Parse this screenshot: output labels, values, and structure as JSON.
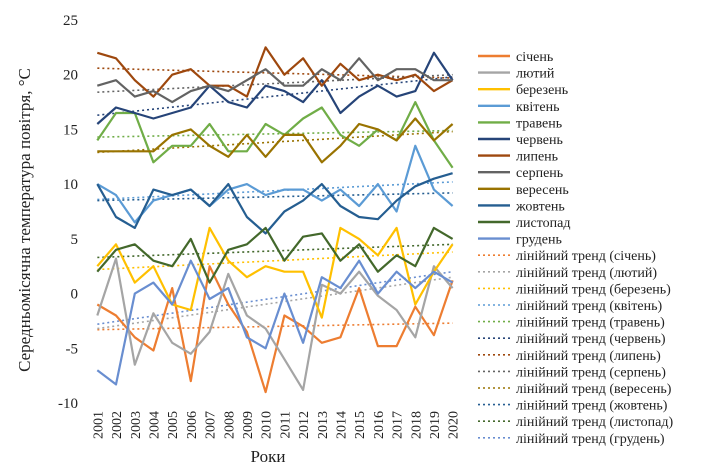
{
  "chart_data": {
    "type": "line",
    "ylabel": "Середньомісячна температура повітря, °С",
    "xlabel": "Роки",
    "ylim": [
      -10,
      25
    ],
    "yticks": [
      -10,
      -5,
      0,
      5,
      10,
      15,
      20,
      25
    ],
    "x": [
      "2001",
      "2002",
      "2003",
      "2004",
      "2005",
      "2006",
      "2007",
      "2008",
      "2009",
      "2010",
      "2011",
      "2012",
      "2013",
      "2014",
      "2015",
      "2016",
      "2017",
      "2018",
      "2019",
      "2020"
    ],
    "grid": false,
    "legend_position": "right",
    "series": [
      {
        "name": "січень",
        "color": "#ED7D31",
        "values": [
          -1,
          -2,
          -4,
          -5.2,
          0.5,
          -8,
          2.5,
          -1,
          -3.5,
          -9,
          -2,
          -3,
          -4.5,
          -4,
          0.5,
          -4.8,
          -4.8,
          -1.2,
          -3.8,
          1.2
        ]
      },
      {
        "name": "лютий",
        "color": "#A5A5A5",
        "values": [
          -2,
          3.2,
          -6.5,
          -1.8,
          -4.5,
          -5.5,
          -3.5,
          1.8,
          -2,
          -3.2,
          -6,
          -8.8,
          0.8,
          0,
          2,
          -0.2,
          -1.5,
          -4,
          2.5,
          0.5
        ]
      },
      {
        "name": "березень",
        "color": "#FFC000",
        "values": [
          2.5,
          4.5,
          1,
          2.5,
          -1,
          -1.5,
          6,
          3,
          1.5,
          2.5,
          2,
          2,
          -2.2,
          6,
          5,
          3.5,
          6,
          -1,
          2,
          4.5
        ]
      },
      {
        "name": "квітень",
        "color": "#5B9BD5",
        "values": [
          10,
          9,
          6.5,
          8.5,
          9,
          9.5,
          8,
          9.5,
          10,
          9,
          9.5,
          9.5,
          8.5,
          9.5,
          8,
          10,
          7.5,
          13.5,
          9.5,
          8
        ]
      },
      {
        "name": "травень",
        "color": "#70AD47",
        "values": [
          14,
          16.5,
          16.5,
          12,
          13.5,
          13.5,
          15.5,
          13,
          13,
          15.5,
          14.5,
          16,
          17,
          14.5,
          13.5,
          15,
          14,
          17.5,
          14,
          11.5
        ]
      },
      {
        "name": "червень",
        "color": "#264478",
        "values": [
          15.5,
          17,
          16.5,
          16,
          16.5,
          17,
          19,
          17.5,
          17,
          19,
          18.5,
          17.5,
          19.5,
          16.5,
          18,
          19,
          18,
          18.5,
          22,
          19.5
        ]
      },
      {
        "name": "липень",
        "color": "#9E480E",
        "values": [
          22,
          21.5,
          19.5,
          18,
          20,
          20.5,
          19,
          19,
          18,
          22.5,
          20,
          21.5,
          19,
          21,
          19.5,
          20,
          19.5,
          20,
          18.5,
          19.5
        ]
      },
      {
        "name": "серпень",
        "color": "#636363",
        "values": [
          19,
          19.5,
          18,
          18.5,
          17.5,
          18.5,
          19,
          18.5,
          19.5,
          20.5,
          19,
          19,
          20.5,
          19.5,
          21.5,
          19.5,
          20.5,
          20.5,
          19.5,
          19.5
        ]
      },
      {
        "name": "вересень",
        "color": "#997300",
        "values": [
          13,
          13,
          13,
          13,
          14.5,
          15,
          13.5,
          12.5,
          14.5,
          12.5,
          14.5,
          14.5,
          12,
          13.5,
          15.5,
          15,
          14,
          16,
          14,
          15.5
        ]
      },
      {
        "name": "жовтень",
        "color": "#255E91",
        "values": [
          10,
          7,
          6,
          9.5,
          9,
          9.5,
          8,
          10,
          7,
          5.5,
          7.5,
          8.5,
          10,
          8,
          7,
          6.8,
          8.5,
          9.8,
          10.5,
          11
        ]
      },
      {
        "name": "листопад",
        "color": "#43682B",
        "values": [
          2,
          4,
          4.5,
          3,
          2.5,
          5,
          1,
          4,
          4.5,
          6,
          3,
          5.2,
          5.5,
          3,
          4.5,
          2,
          3.5,
          2.5,
          6,
          5
        ]
      },
      {
        "name": "грудень",
        "color": "#698ED0",
        "values": [
          -7,
          -8.3,
          0,
          1,
          -1,
          3,
          -0.5,
          0.5,
          -4,
          -5,
          0,
          -4.5,
          1.5,
          0.5,
          3,
          0,
          2,
          0.5,
          2,
          1
        ]
      },
      {
        "name": "лінійний тренд (січень)",
        "color": "#ED7D31",
        "trend": [
          -3.3,
          -2.7
        ]
      },
      {
        "name": "лінійний тренд (лютий)",
        "color": "#A5A5A5",
        "trend": [
          -3.2,
          1.5
        ]
      },
      {
        "name": "лінійний тренд (березень)",
        "color": "#FFC000",
        "trend": [
          2.2,
          3.8
        ]
      },
      {
        "name": "лінійний тренд (квітень)",
        "color": "#5B9BD5",
        "trend": [
          8.6,
          10.2
        ]
      },
      {
        "name": "лінійний тренд (травень)",
        "color": "#70AD47",
        "trend": [
          14.3,
          14.9
        ]
      },
      {
        "name": "лінійний тренд (червень)",
        "color": "#264478",
        "trend": [
          16.3,
          19.8
        ]
      },
      {
        "name": "лінійний тренд (липень)",
        "color": "#9E480E",
        "trend": [
          20.6,
          19.7
        ]
      },
      {
        "name": "лінійний тренд (серпень)",
        "color": "#636363",
        "trend": [
          18.4,
          20.0
        ]
      },
      {
        "name": "лінійний тренд (вересень)",
        "color": "#997300",
        "trend": [
          12.9,
          14.8
        ]
      },
      {
        "name": "лінійний тренд (жовтень)",
        "color": "#255E91",
        "trend": [
          8.5,
          9.2
        ]
      },
      {
        "name": "лінійний тренд (листопад)",
        "color": "#43682B",
        "trend": [
          3.3,
          4.5
        ]
      },
      {
        "name": "лінійний тренд (грудень)",
        "color": "#698ED0",
        "trend": [
          -2.8,
          2.0
        ]
      }
    ]
  }
}
